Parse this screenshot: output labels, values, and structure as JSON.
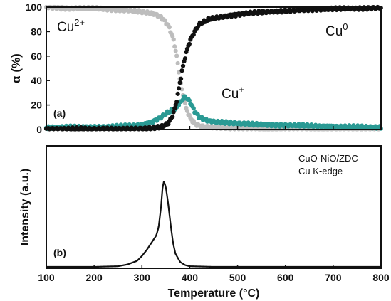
{
  "chart_data": [
    {
      "panel": "(a)",
      "type": "scatter",
      "xlim": [
        100,
        800
      ],
      "ylim": [
        0,
        100
      ],
      "ylabel": "α (%)",
      "yticks": [
        "0",
        "20",
        "40",
        "60",
        "80",
        "100"
      ],
      "colors": {
        "Cu2+": "#bdbdbd",
        "Cu0": "#111111",
        "Cu+": "#2a9a94"
      },
      "labels": {
        "cu2": "Cu",
        "cu2_sup": "2+",
        "cu0": "Cu",
        "cu0_sup": "0",
        "cu1": "Cu",
        "cu1_sup": "+"
      },
      "series": [
        {
          "name": "Cu2+",
          "x": [
            100,
            150,
            200,
            250,
            280,
            300,
            320,
            335,
            345,
            355,
            365,
            372,
            378,
            385,
            392,
            400,
            410,
            420,
            440,
            480,
            550,
            650,
            800
          ],
          "y": [
            100,
            99,
            99,
            98,
            97,
            96,
            95,
            93,
            90,
            85,
            75,
            62,
            45,
            30,
            18,
            10,
            5,
            3,
            2,
            1,
            0.5,
            0.5,
            0.5
          ]
        },
        {
          "name": "Cu0",
          "x": [
            100,
            200,
            280,
            320,
            340,
            355,
            365,
            372,
            378,
            385,
            392,
            400,
            410,
            420,
            440,
            480,
            520,
            560,
            600,
            650,
            700,
            750,
            800
          ],
          "y": [
            0.5,
            0.5,
            0.5,
            1,
            2,
            5,
            12,
            22,
            35,
            50,
            62,
            72,
            80,
            86,
            90,
            93,
            95,
            96,
            97,
            98,
            98.5,
            99,
            99.5
          ]
        },
        {
          "name": "Cu+",
          "x": [
            100,
            150,
            200,
            250,
            280,
            300,
            320,
            340,
            350,
            360,
            370,
            380,
            390,
            400,
            410,
            420,
            440,
            460,
            500,
            550,
            600,
            650,
            700,
            750,
            800
          ],
          "y": [
            1.5,
            2,
            2,
            2.5,
            3,
            4,
            6,
            10,
            13,
            15,
            17,
            22,
            27,
            23,
            15,
            10,
            7,
            6,
            5,
            4,
            3.5,
            3,
            2.5,
            2,
            2
          ]
        }
      ]
    },
    {
      "panel": "(b)",
      "type": "line",
      "xlim": [
        100,
        800
      ],
      "xlabel": "Temperature (°C)",
      "ylabel": "Intensity (a.u.)",
      "xticks": [
        "100",
        "200",
        "300",
        "400",
        "500",
        "600",
        "700",
        "800"
      ],
      "annotation": [
        "CuO-NiO/ZDC",
        "Cu K-edge"
      ],
      "series": [
        {
          "name": "",
          "x": [
            100,
            200,
            250,
            270,
            290,
            300,
            310,
            320,
            330,
            335,
            340,
            343,
            346,
            350,
            355,
            360,
            365,
            370,
            380,
            390,
            400,
            450,
            500,
            800
          ],
          "y": [
            0,
            0,
            0.5,
            2,
            5,
            9,
            14,
            20,
            26,
            33,
            50,
            65,
            71,
            66,
            52,
            35,
            20,
            11,
            4,
            1.5,
            0.5,
            0,
            0,
            0
          ]
        }
      ]
    }
  ]
}
